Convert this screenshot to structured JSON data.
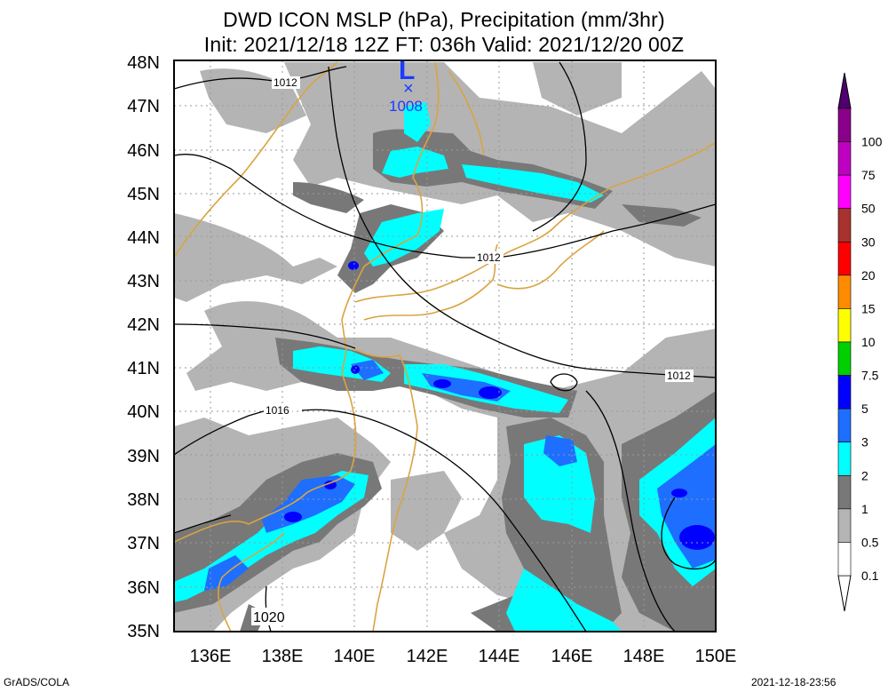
{
  "title": {
    "line1": "DWD ICON MSLP (hPa), Precipitation (mm/3hr)",
    "line2": "Init: 2021/12/18 12Z  FT: 036h  Valid: 2021/12/20 00Z"
  },
  "map": {
    "lat_labels": [
      "48N",
      "47N",
      "46N",
      "45N",
      "44N",
      "43N",
      "42N",
      "41N",
      "40N",
      "39N",
      "38N",
      "37N",
      "36N",
      "35N"
    ],
    "lon_labels": [
      "136E",
      "138E",
      "140E",
      "142E",
      "144E",
      "146E",
      "148E",
      "150E"
    ],
    "isobar_labels": [
      {
        "text": "1012",
        "id": "nw"
      },
      {
        "text": "1012",
        "id": "hok"
      },
      {
        "text": "1012",
        "id": "east"
      },
      {
        "text": "1016",
        "id": "mid"
      },
      {
        "text": "1020",
        "id": "sw"
      }
    ],
    "low": {
      "symbol": "L",
      "marker": "×",
      "pressure": "1008"
    }
  },
  "colorbar": {
    "labels": [
      "100",
      "75",
      "50",
      "30",
      "20",
      "15",
      "10",
      "7.5",
      "5",
      "3",
      "2",
      "1",
      "0.5",
      "0.1"
    ],
    "colors": [
      "#8a008a",
      "#c000c0",
      "#ff00ff",
      "#a8322d",
      "#ff0000",
      "#ff8c00",
      "#ffff00",
      "#00d000",
      "#0000ff",
      "#1e6eff",
      "#00ffff",
      "#787878",
      "#b4b4b4",
      "#ffffff"
    ]
  },
  "footer": {
    "left": "GrADS/COLA",
    "right": "2021-12-18-23:56"
  }
}
